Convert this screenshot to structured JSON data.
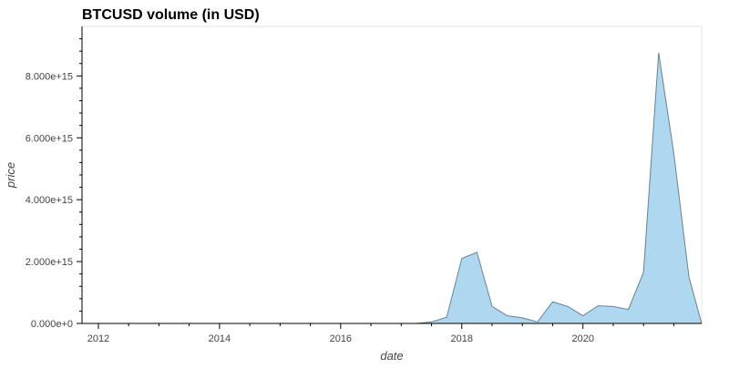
{
  "chart_data": {
    "type": "area",
    "title": "BTCUSD volume (in USD)",
    "xlabel": "date",
    "ylabel": "price",
    "x_ticks": [
      "2012",
      "2014",
      "2016",
      "2018",
      "2020"
    ],
    "x_tick_values": [
      2012.0,
      2014.0,
      2016.0,
      2018.0,
      2020.0
    ],
    "xlim": [
      2011.73,
      2021.96
    ],
    "y_ticks": [
      "0.000e+0",
      "2.000e+15",
      "4.000e+15",
      "6.000e+15",
      "8.000e+15"
    ],
    "y_tick_values": [
      0,
      2000000000000000.0,
      4000000000000000.0,
      6000000000000000.0,
      8000000000000000.0
    ],
    "ylim": [
      0,
      9600000000000000.0
    ],
    "grid": false,
    "colors": {
      "fill": "#add8f0",
      "line": "#6b8191",
      "axis": "#000000",
      "frame": "#e5e5e5"
    },
    "x": [
      2012.0,
      2012.25,
      2012.5,
      2012.75,
      2013.0,
      2013.25,
      2013.5,
      2013.75,
      2014.0,
      2014.25,
      2014.5,
      2014.75,
      2015.0,
      2015.25,
      2015.5,
      2015.75,
      2016.0,
      2016.25,
      2016.5,
      2016.75,
      2017.0,
      2017.25,
      2017.5,
      2017.75,
      2018.0,
      2018.25,
      2018.5,
      2018.75,
      2019.0,
      2019.25,
      2019.5,
      2019.75,
      2020.0,
      2020.25,
      2020.5,
      2020.75,
      2021.0,
      2021.25,
      2021.5,
      2021.75,
      2021.96
    ],
    "values": [
      0,
      0,
      0,
      0,
      0,
      0,
      0,
      0,
      0,
      0,
      0,
      0,
      0,
      0,
      0,
      0,
      0,
      0,
      0,
      0,
      0,
      0,
      50000000000000.0,
      200000000000000.0,
      2100000000000000.0,
      2300000000000000.0,
      550000000000000.0,
      250000000000000.0,
      180000000000000.0,
      50000000000000.0,
      700000000000000.0,
      550000000000000.0,
      250000000000000.0,
      570000000000000.0,
      550000000000000.0,
      450000000000000.0,
      1650000000000000.0,
      8750000000000000.0,
      5500000000000000.0,
      1500000000000000.0,
      0
    ]
  }
}
